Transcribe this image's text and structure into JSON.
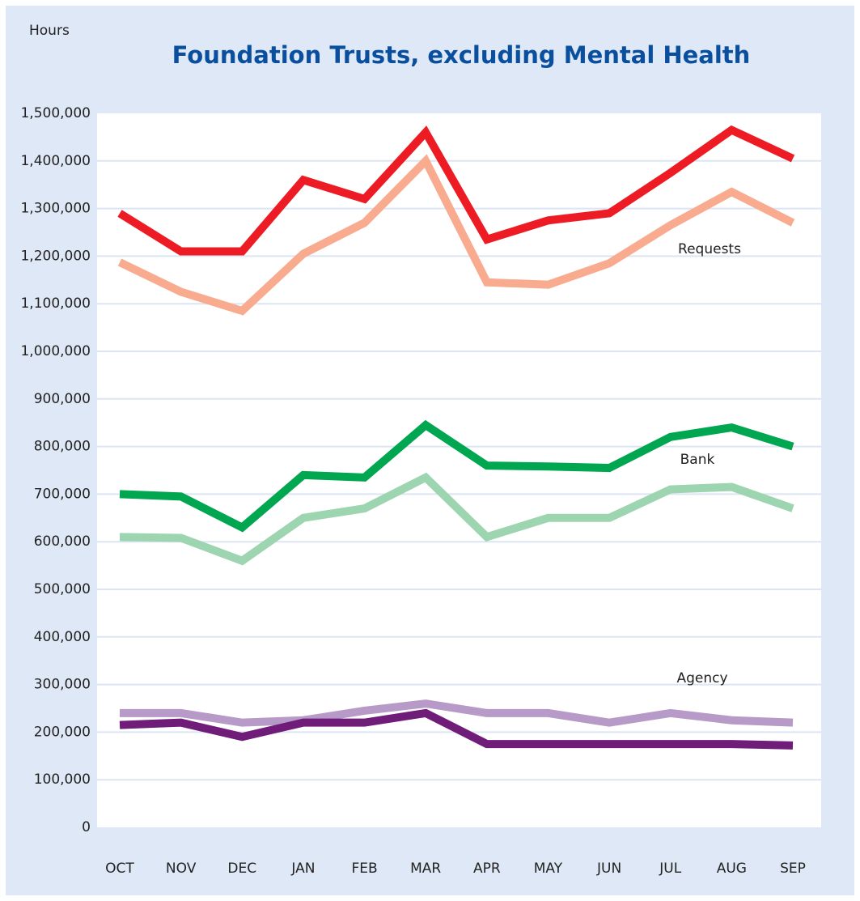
{
  "chart_data": {
    "type": "line",
    "title": "Foundation Trusts, excluding Mental Health",
    "y_label": "Hours",
    "categories": [
      "OCT",
      "NOV",
      "DEC",
      "JAN",
      "FEB",
      "MAR",
      "APR",
      "MAY",
      "JUN",
      "JUL",
      "AUG",
      "SEP"
    ],
    "series": [
      {
        "color": "#ed1c24",
        "values": [
          1290000,
          1210000,
          1210000,
          1360000,
          1320000,
          1460000,
          1235000,
          1275000,
          1290000,
          1375000,
          1465000,
          1405000
        ]
      },
      {
        "color": "#f9ab8f",
        "values": [
          1187000,
          1125000,
          1085000,
          1205000,
          1270000,
          1400000,
          1145000,
          1140000,
          1185000,
          1265000,
          1335000,
          1270000
        ]
      },
      {
        "color": "#00a650",
        "values": [
          700000,
          695000,
          630000,
          740000,
          735000,
          845000,
          760000,
          758000,
          755000,
          820000,
          840000,
          800000
        ]
      },
      {
        "color": "#9dd5b0",
        "values": [
          610000,
          608000,
          560000,
          650000,
          670000,
          735000,
          610000,
          650000,
          650000,
          710000,
          715000,
          670000
        ]
      },
      {
        "color": "#b89ac8",
        "values": [
          240000,
          240000,
          220000,
          225000,
          245000,
          260000,
          240000,
          240000,
          220000,
          240000,
          225000,
          220000
        ]
      },
      {
        "color": "#6f1d78",
        "values": [
          215000,
          220000,
          190000,
          220000,
          220000,
          240000,
          175000,
          175000,
          175000,
          175000,
          175000,
          172000
        ]
      }
    ],
    "annotations": [
      "Requests",
      "Bank",
      "Agency"
    ],
    "ylim": [
      0,
      1500000
    ],
    "yticks": [
      0,
      {
        "value": 100000,
        "label": "100,000"
      },
      {
        "value": 200000,
        "label": "200,000"
      },
      {
        "value": 300000,
        "label": "300,000"
      },
      {
        "value": 400000,
        "label": "400,000"
      },
      {
        "value": 500000,
        "label": "500,000"
      },
      {
        "value": 600000,
        "label": "600,000"
      },
      {
        "value": 700000,
        "label": "700,000"
      },
      {
        "value": 800000,
        "label": "800,000"
      },
      {
        "value": 900000,
        "label": "900,000"
      },
      {
        "value": 1000000,
        "label": "1,000,000"
      },
      {
        "value": 1100000,
        "label": "1,100,000"
      },
      {
        "value": 1200000,
        "label": "1,200,000"
      },
      {
        "value": 1300000,
        "label": "1,300,000"
      },
      {
        "value": 1400000,
        "label": "1,400,000"
      },
      {
        "value": 1500000,
        "label": "1,500,000"
      }
    ],
    "grid": true
  }
}
